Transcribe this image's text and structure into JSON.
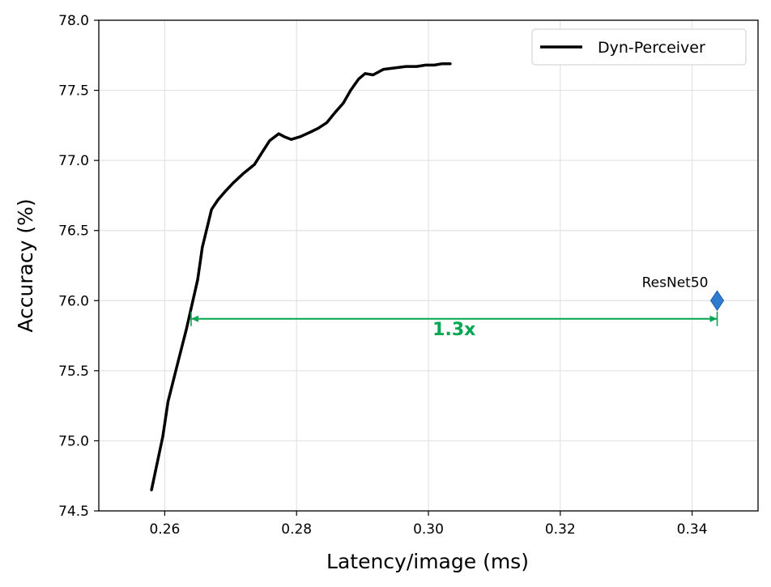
{
  "chart_data": {
    "type": "line",
    "title": "",
    "xlabel": "Latency/image (ms)",
    "ylabel": "Accuracy (%)",
    "xlim": [
      0.25,
      0.35
    ],
    "ylim": [
      74.5,
      78.0
    ],
    "xticks": [
      0.26,
      0.28,
      0.3,
      0.32,
      0.34
    ],
    "xtick_labels": [
      "0.26",
      "0.28",
      "0.30",
      "0.32",
      "0.34"
    ],
    "yticks": [
      74.5,
      75.0,
      75.5,
      76.0,
      76.5,
      77.0,
      77.5,
      78.0
    ],
    "ytick_labels": [
      "74.5",
      "75.0",
      "75.5",
      "76.0",
      "76.5",
      "77.0",
      "77.5",
      "78.0"
    ],
    "grid": true,
    "legend_position": "top-right",
    "series": [
      {
        "name": "Dyn-Perceiver",
        "color": "#000000",
        "x": [
          0.258,
          0.2597,
          0.2605,
          0.262,
          0.2633,
          0.265,
          0.2657,
          0.2671,
          0.2681,
          0.2692,
          0.2704,
          0.272,
          0.2736,
          0.2748,
          0.2759,
          0.2773,
          0.2781,
          0.2792,
          0.2806,
          0.282,
          0.2833,
          0.2846,
          0.2858,
          0.2871,
          0.2882,
          0.2894,
          0.2904,
          0.2916,
          0.2932,
          0.2949,
          0.2966,
          0.2982,
          0.2996,
          0.3009,
          0.3021,
          0.3033
        ],
        "y": [
          74.65,
          75.03,
          75.28,
          75.56,
          75.8,
          76.15,
          76.38,
          76.65,
          76.72,
          76.78,
          76.84,
          76.91,
          76.97,
          77.06,
          77.14,
          77.19,
          77.17,
          77.15,
          77.17,
          77.2,
          77.23,
          77.27,
          77.34,
          77.41,
          77.5,
          77.58,
          77.62,
          77.61,
          77.65,
          77.66,
          77.67,
          77.67,
          77.68,
          77.68,
          77.69,
          77.69
        ]
      }
    ],
    "baseline": {
      "label": "ResNet50",
      "x": 0.3438,
      "y": 76.0,
      "color": "#2e7bcf"
    },
    "speedup": {
      "label": "1.3x",
      "y": 75.87,
      "x_start": 0.264,
      "x_end": 0.3438,
      "color": "#00a651"
    }
  }
}
